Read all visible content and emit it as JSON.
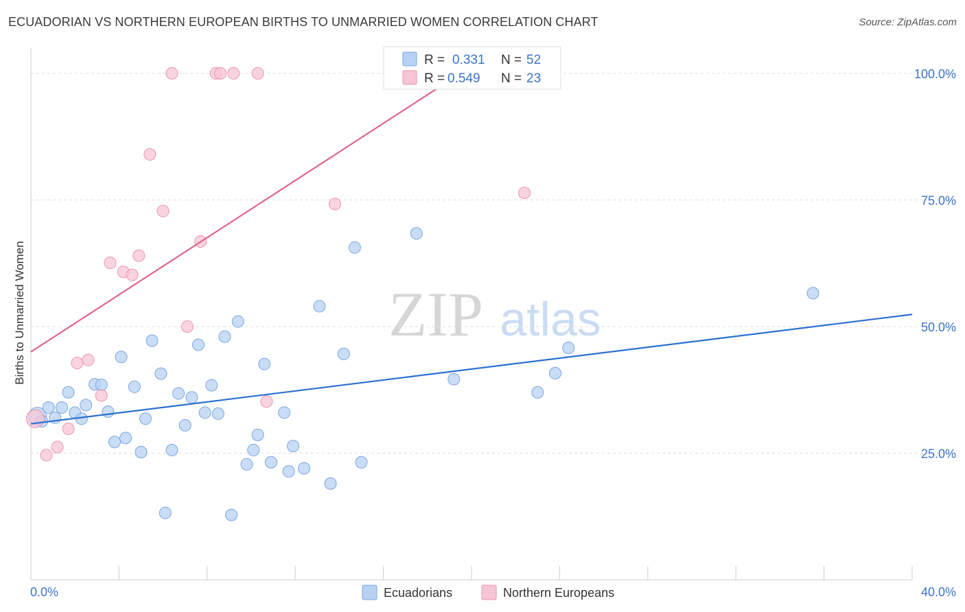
{
  "title": "ECUADORIAN VS NORTHERN EUROPEAN BIRTHS TO UNMARRIED WOMEN CORRELATION CHART",
  "source": "Source: ZipAtlas.com",
  "watermark": {
    "zip": "ZIP",
    "atlas": "atlas"
  },
  "colors": {
    "blue_fill": "#b8d1f3",
    "blue_stroke": "#7aa6de",
    "blue_line": "#2a6fd1",
    "pink_fill": "#f7c5d5",
    "pink_stroke": "#ec93b1",
    "pink_line": "#e0648f",
    "axis_label": "#3a73c8",
    "grid": "#dddddd"
  },
  "legend": {
    "r_label": "R =",
    "n_label": "N =",
    "entries": [
      {
        "r": "0.331",
        "n": "52"
      },
      {
        "r": "0.549",
        "n": "23"
      }
    ]
  },
  "bottom_legend": [
    "Ecuadorians",
    "Northern Europeans"
  ],
  "chart_data": {
    "type": "scatter",
    "xlabel": "",
    "ylabel": "Births to Unmarried Women",
    "xlim": [
      0,
      40
    ],
    "ylim": [
      0,
      105
    ],
    "x_tick_labels": [
      "0.0%",
      "40.0%"
    ],
    "y_tick_labels": [
      "100.0%",
      "75.0%",
      "50.0%",
      "25.0%"
    ],
    "y_ticks": [
      100,
      75,
      50,
      25
    ],
    "grid": true,
    "series": [
      {
        "name": "Ecuadorians",
        "color": "#b8d1f3",
        "trend": {
          "x": [
            0,
            40
          ],
          "y": [
            30.8,
            52.4
          ]
        },
        "points": [
          [
            0.3,
            32.3
          ],
          [
            0.5,
            31.3
          ],
          [
            0.8,
            34.0
          ],
          [
            1.1,
            32.0
          ],
          [
            1.4,
            34.0
          ],
          [
            1.7,
            37.0
          ],
          [
            2.0,
            33.0
          ],
          [
            2.3,
            31.8
          ],
          [
            2.5,
            34.5
          ],
          [
            2.9,
            38.6
          ],
          [
            3.2,
            38.5
          ],
          [
            3.5,
            33.2
          ],
          [
            3.8,
            27.2
          ],
          [
            4.1,
            44.0
          ],
          [
            4.3,
            28.0
          ],
          [
            4.7,
            38.1
          ],
          [
            5.0,
            25.2
          ],
          [
            5.2,
            31.8
          ],
          [
            5.5,
            47.2
          ],
          [
            5.9,
            40.7
          ],
          [
            6.1,
            13.2
          ],
          [
            6.4,
            25.6
          ],
          [
            6.7,
            36.8
          ],
          [
            7.0,
            30.5
          ],
          [
            7.3,
            36.0
          ],
          [
            7.6,
            46.4
          ],
          [
            7.9,
            33.0
          ],
          [
            8.2,
            38.4
          ],
          [
            8.5,
            32.8
          ],
          [
            8.8,
            48.0
          ],
          [
            9.1,
            12.8
          ],
          [
            9.4,
            51.0
          ],
          [
            9.8,
            22.8
          ],
          [
            10.1,
            25.6
          ],
          [
            10.3,
            28.6
          ],
          [
            10.6,
            42.6
          ],
          [
            10.9,
            23.2
          ],
          [
            11.5,
            33.0
          ],
          [
            11.7,
            21.4
          ],
          [
            11.9,
            26.4
          ],
          [
            12.4,
            22.0
          ],
          [
            13.1,
            54.0
          ],
          [
            13.6,
            19.0
          ],
          [
            14.2,
            44.6
          ],
          [
            14.7,
            65.6
          ],
          [
            15.0,
            23.2
          ],
          [
            17.5,
            68.4
          ],
          [
            19.2,
            39.6
          ],
          [
            23.0,
            37.0
          ],
          [
            23.8,
            40.8
          ],
          [
            24.4,
            45.8
          ],
          [
            35.5,
            56.6
          ]
        ]
      },
      {
        "name": "Northern Europeans",
        "color": "#f7c5d5",
        "trend": {
          "x": [
            0,
            19.5
          ],
          "y": [
            45.0,
            100.0
          ]
        },
        "points": [
          [
            0.2,
            31.8
          ],
          [
            0.7,
            24.6
          ],
          [
            1.2,
            26.2
          ],
          [
            1.7,
            29.8
          ],
          [
            2.1,
            42.8
          ],
          [
            2.6,
            43.4
          ],
          [
            3.2,
            36.4
          ],
          [
            3.6,
            62.6
          ],
          [
            4.2,
            60.8
          ],
          [
            4.6,
            60.2
          ],
          [
            4.9,
            64.0
          ],
          [
            5.4,
            84.0
          ],
          [
            6.0,
            72.8
          ],
          [
            6.4,
            100.0
          ],
          [
            7.1,
            50.0
          ],
          [
            7.7,
            66.8
          ],
          [
            8.4,
            100.0
          ],
          [
            8.6,
            100.0
          ],
          [
            9.2,
            100.0
          ],
          [
            10.3,
            100.0
          ],
          [
            10.7,
            35.2
          ],
          [
            13.8,
            74.2
          ],
          [
            22.4,
            76.4
          ]
        ]
      }
    ]
  }
}
